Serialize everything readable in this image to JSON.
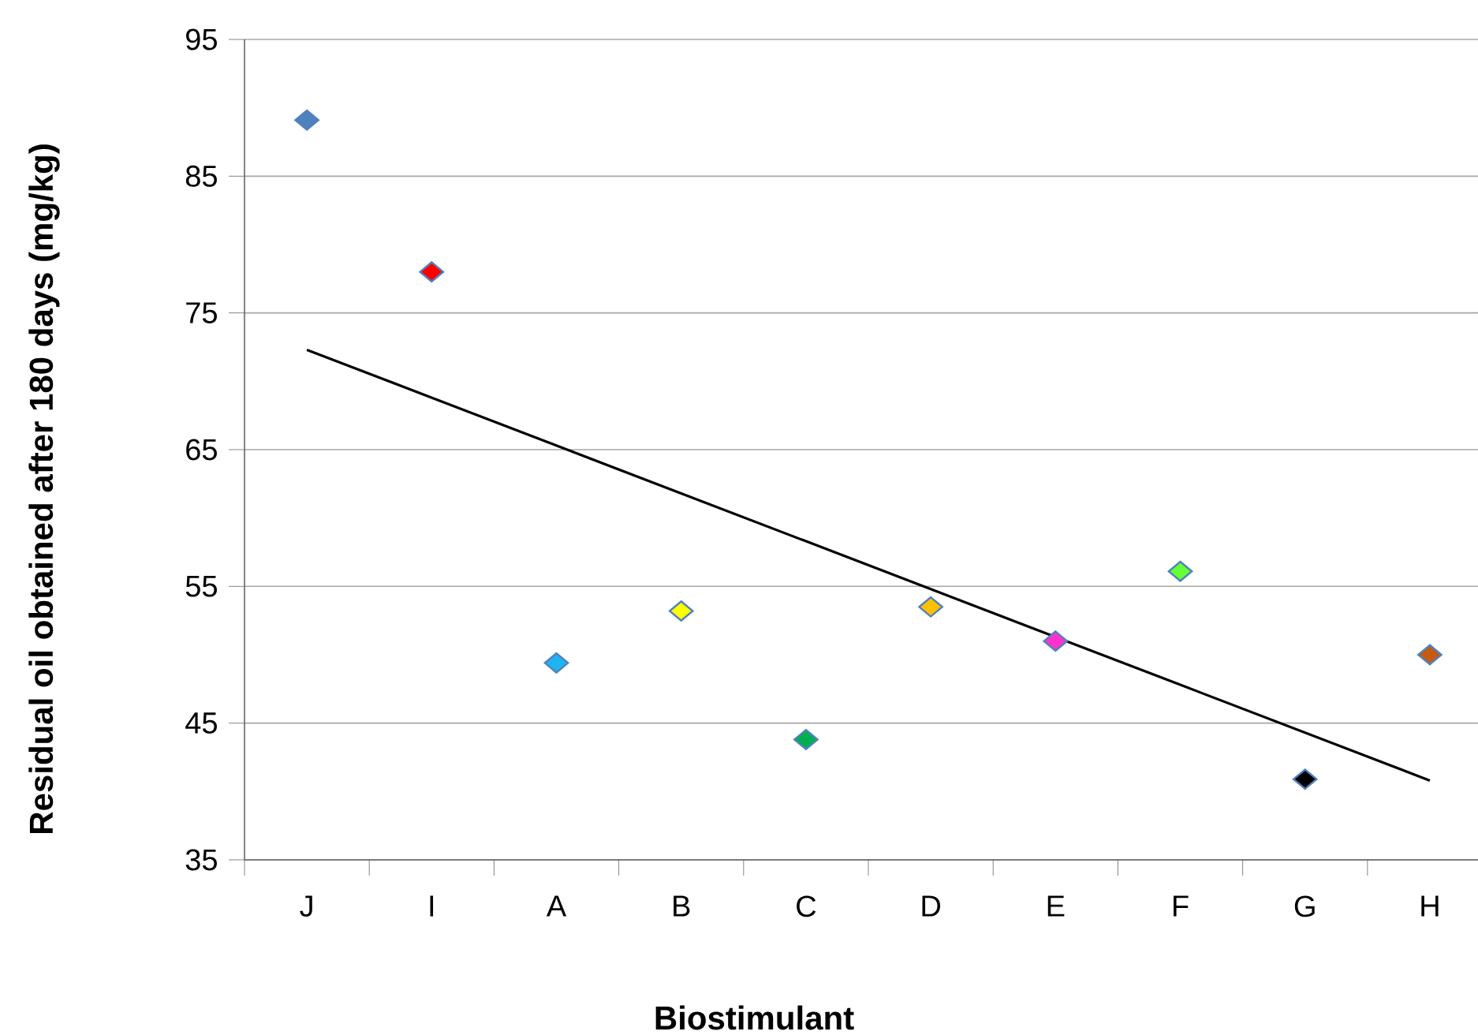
{
  "chart_data": {
    "type": "scatter",
    "xlabel": "Biostimulant",
    "ylabel": "Residual oil  obtained after 180 days (mg/kg)",
    "categories": [
      "J",
      "I",
      "A",
      "B",
      "C",
      "D",
      "E",
      "F",
      "G",
      "H"
    ],
    "series": [
      {
        "marker": "diamond",
        "colors": [
          "#4f81bd",
          "#ff0000",
          "#1fb4f0",
          "#ffff00",
          "#00b050",
          "#ffc000",
          "#ff33cc",
          "#66ff33",
          "#000000",
          "#c55a11"
        ],
        "values": [
          89.1,
          78.0,
          49.4,
          53.2,
          43.8,
          53.5,
          51.0,
          56.1,
          40.9,
          50.0
        ]
      },
      {
        "type": "line",
        "color": "#000000",
        "values": [
          72.3,
          68.8,
          65.3,
          61.8,
          58.3,
          54.8,
          51.3,
          47.8,
          44.3,
          40.8
        ]
      }
    ],
    "ylim": [
      35,
      95
    ],
    "yticks": [
      35,
      45,
      55,
      65,
      75,
      85,
      95
    ],
    "grid": "y"
  }
}
